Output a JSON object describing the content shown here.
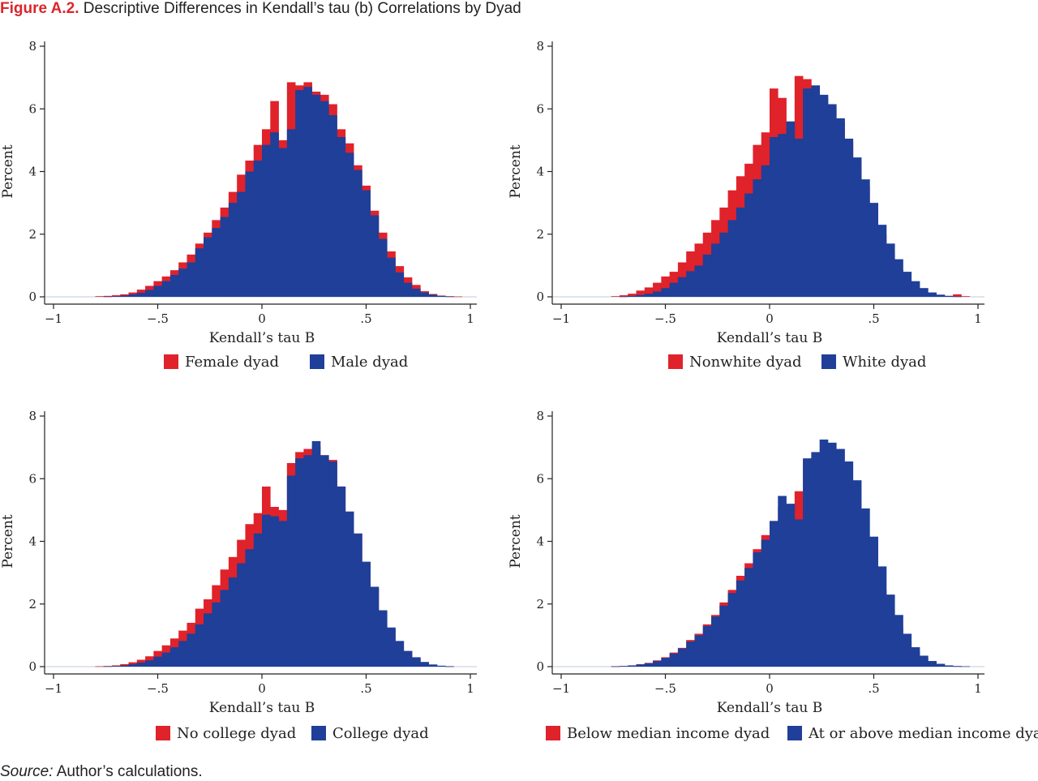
{
  "figure": {
    "label": "Figure A.2.",
    "title": "Descriptive Differences in Kendall’s tau (b) Correlations by Dyad",
    "source_label": "Source:",
    "source_text": "Author’s calculations."
  },
  "colors": {
    "red": "#e0222b",
    "blue": "#1f3f99"
  },
  "chart_data": [
    {
      "type": "bar",
      "xlabel": "Kendall’s tau B",
      "ylabel": "Percent",
      "xlim": [
        -1,
        1
      ],
      "ylim": [
        0,
        8
      ],
      "xticks": [
        "−1",
        "−.5",
        "0",
        ".5",
        "1"
      ],
      "yticks": [
        "0",
        "2",
        "4",
        "6",
        "8"
      ],
      "bin_start": -0.8,
      "bin_width": 0.04,
      "series": [
        {
          "name": "Female dyad",
          "color": "#e0222b",
          "values": [
            0.02,
            0.03,
            0.05,
            0.08,
            0.14,
            0.23,
            0.35,
            0.5,
            0.65,
            0.85,
            1.1,
            1.35,
            1.7,
            2.05,
            2.45,
            2.85,
            3.35,
            3.9,
            4.35,
            4.85,
            5.35,
            6.25,
            5.0,
            6.85,
            6.75,
            6.85,
            6.55,
            6.45,
            6.15,
            5.35,
            4.9,
            4.2,
            3.55,
            2.75,
            2.05,
            1.45,
            0.98,
            0.62,
            0.38,
            0.18,
            0.09,
            0.04,
            0.02,
            0.01,
            0.0
          ]
        },
        {
          "name": "Male dyad",
          "color": "#1f3f99",
          "values": [
            0.0,
            0.01,
            0.02,
            0.04,
            0.08,
            0.13,
            0.22,
            0.35,
            0.5,
            0.7,
            0.9,
            1.1,
            1.55,
            1.9,
            2.2,
            2.55,
            3.0,
            3.35,
            4.0,
            4.35,
            4.85,
            5.25,
            4.75,
            5.35,
            6.6,
            6.7,
            6.45,
            6.25,
            5.8,
            5.1,
            4.6,
            4.05,
            3.4,
            2.6,
            1.85,
            1.25,
            0.78,
            0.45,
            0.26,
            0.14,
            0.07,
            0.03,
            0.01,
            0.0,
            0.0
          ]
        }
      ]
    },
    {
      "type": "bar",
      "xlabel": "Kendall’s tau B",
      "ylabel": "Percent",
      "xlim": [
        -1,
        1
      ],
      "ylim": [
        0,
        8
      ],
      "xticks": [
        "−1",
        "−.5",
        "0",
        ".5",
        "1"
      ],
      "yticks": [
        "0",
        "2",
        "4",
        "6",
        "8"
      ],
      "bin_start": -0.8,
      "bin_width": 0.04,
      "series": [
        {
          "name": "Nonwhite dyad",
          "color": "#e0222b",
          "values": [
            0.0,
            0.02,
            0.05,
            0.1,
            0.2,
            0.3,
            0.45,
            0.65,
            0.8,
            1.1,
            1.45,
            1.7,
            2.05,
            2.45,
            2.85,
            3.4,
            3.85,
            4.25,
            4.85,
            5.25,
            6.65,
            6.35,
            5.2,
            7.05,
            6.95,
            6.7,
            6.35,
            6.05,
            5.6,
            4.95,
            4.35,
            3.55,
            2.75,
            2.0,
            1.4,
            0.88,
            0.52,
            0.28,
            0.15,
            0.08,
            0.05,
            0.03,
            0.08,
            0.02,
            0.0
          ]
        },
        {
          "name": "White dyad",
          "color": "#1f3f99",
          "values": [
            0.0,
            0.0,
            0.01,
            0.03,
            0.06,
            0.1,
            0.17,
            0.28,
            0.45,
            0.63,
            0.82,
            1.0,
            1.35,
            1.7,
            2.05,
            2.45,
            2.85,
            3.3,
            3.75,
            4.2,
            5.1,
            5.2,
            5.6,
            5.05,
            6.65,
            6.75,
            6.45,
            6.15,
            5.7,
            5.05,
            4.45,
            3.75,
            3.0,
            2.3,
            1.7,
            1.2,
            0.8,
            0.5,
            0.28,
            0.14,
            0.07,
            0.03,
            0.01,
            0.0,
            0.0
          ]
        }
      ]
    },
    {
      "type": "bar",
      "xlabel": "Kendall’s tau B",
      "ylabel": "Percent",
      "xlim": [
        -1,
        1
      ],
      "ylim": [
        0,
        8
      ],
      "xticks": [
        "−1",
        "−.5",
        "0",
        ".5",
        "1"
      ],
      "yticks": [
        "0",
        "2",
        "4",
        "6",
        "8"
      ],
      "bin_start": -0.8,
      "bin_width": 0.04,
      "series": [
        {
          "name": "No college dyad",
          "color": "#e0222b",
          "values": [
            0.01,
            0.02,
            0.04,
            0.08,
            0.14,
            0.22,
            0.33,
            0.5,
            0.68,
            0.9,
            1.15,
            1.4,
            1.85,
            2.15,
            2.6,
            3.1,
            3.5,
            4.05,
            4.55,
            4.9,
            5.75,
            5.1,
            5.0,
            6.5,
            6.85,
            6.95,
            7.05,
            6.75,
            6.6,
            5.75,
            4.95,
            4.25,
            3.3,
            2.5,
            1.75,
            1.2,
            0.8,
            0.5,
            0.28,
            0.13,
            0.06,
            0.02,
            0.01,
            0.0,
            0.0
          ]
        },
        {
          "name": "College dyad",
          "color": "#1f3f99",
          "values": [
            0.0,
            0.01,
            0.02,
            0.04,
            0.08,
            0.13,
            0.2,
            0.32,
            0.45,
            0.62,
            0.82,
            1.05,
            1.35,
            1.7,
            2.05,
            2.45,
            2.85,
            3.3,
            3.75,
            4.25,
            4.85,
            4.8,
            4.65,
            6.1,
            6.65,
            6.75,
            7.2,
            6.75,
            6.55,
            5.75,
            4.95,
            4.25,
            3.35,
            2.55,
            1.8,
            1.25,
            0.82,
            0.5,
            0.3,
            0.15,
            0.07,
            0.03,
            0.01,
            0.0,
            0.0
          ]
        }
      ]
    },
    {
      "type": "bar",
      "xlabel": "Kendall’s tau B",
      "ylabel": "Percent",
      "xlim": [
        -1,
        1
      ],
      "ylim": [
        0,
        8
      ],
      "xticks": [
        "−1",
        "−.5",
        "0",
        ".5",
        "1"
      ],
      "yticks": [
        "0",
        "2",
        "4",
        "6",
        "8"
      ],
      "bin_start": -0.8,
      "bin_width": 0.04,
      "series": [
        {
          "name": "Below median income dyad",
          "color": "#e0222b",
          "values": [
            0.0,
            0.01,
            0.02,
            0.04,
            0.08,
            0.12,
            0.2,
            0.3,
            0.45,
            0.6,
            0.85,
            1.05,
            1.35,
            1.65,
            2.05,
            2.45,
            2.9,
            3.3,
            3.75,
            4.2,
            4.65,
            5.1,
            4.65,
            5.6,
            6.6,
            6.75,
            6.65,
            6.45,
            6.1,
            5.35,
            4.65,
            3.95,
            3.2,
            2.45,
            1.8,
            1.25,
            0.8,
            0.48,
            0.28,
            0.14,
            0.07,
            0.03,
            0.01,
            0.0,
            0.0
          ]
        },
        {
          "name": "At or above median income dyad",
          "color": "#1f3f99",
          "values": [
            0.0,
            0.01,
            0.02,
            0.04,
            0.07,
            0.11,
            0.18,
            0.28,
            0.42,
            0.58,
            0.8,
            1.0,
            1.3,
            1.6,
            1.95,
            2.35,
            2.75,
            3.15,
            3.65,
            4.05,
            4.65,
            5.45,
            5.2,
            4.7,
            6.65,
            6.85,
            7.25,
            7.15,
            6.95,
            6.55,
            5.95,
            5.05,
            4.15,
            3.2,
            2.3,
            1.65,
            1.05,
            0.62,
            0.35,
            0.18,
            0.09,
            0.04,
            0.02,
            0.01,
            0.0
          ]
        }
      ]
    }
  ]
}
